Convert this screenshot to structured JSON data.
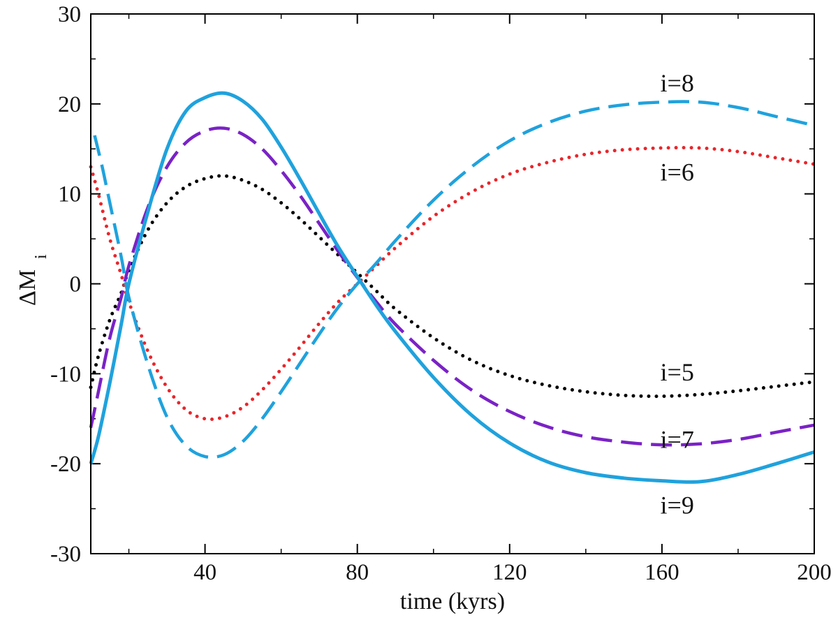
{
  "chart_data": {
    "type": "line",
    "title": "",
    "xlabel": "time (kyrs)",
    "ylabel_main": "ΔM",
    "ylabel_sub": "i",
    "xlim": [
      10,
      200
    ],
    "ylim": [
      -30,
      30
    ],
    "xticks": [
      40,
      80,
      120,
      160,
      200
    ],
    "xtick_labels": [
      "40",
      "80",
      "120",
      "160",
      "200"
    ],
    "yticks": [
      -30,
      -20,
      -10,
      0,
      10,
      20,
      30
    ],
    "ytick_labels": [
      "-30",
      "-20",
      "-10",
      "0",
      "10",
      "20",
      "30"
    ],
    "grid": false,
    "series": [
      {
        "name": "i=5",
        "label": "i=5",
        "color": "#000000",
        "style": "dotted",
        "label_at": [
          164,
          -9.8
        ],
        "points": [
          [
            10,
            -11.5
          ],
          [
            12,
            -8
          ],
          [
            15,
            -4
          ],
          [
            18,
            -1
          ],
          [
            20,
            1.5
          ],
          [
            25,
            6
          ],
          [
            30,
            9
          ],
          [
            35,
            10.8
          ],
          [
            40,
            11.7
          ],
          [
            45,
            12
          ],
          [
            50,
            11.5
          ],
          [
            55,
            10.5
          ],
          [
            60,
            9
          ],
          [
            65,
            7.2
          ],
          [
            70,
            5.2
          ],
          [
            75,
            3.2
          ],
          [
            80,
            1.2
          ],
          [
            85,
            -0.8
          ],
          [
            90,
            -2.8
          ],
          [
            100,
            -6
          ],
          [
            110,
            -8.5
          ],
          [
            120,
            -10.2
          ],
          [
            130,
            -11.3
          ],
          [
            140,
            -12
          ],
          [
            150,
            -12.4
          ],
          [
            160,
            -12.5
          ],
          [
            170,
            -12.3
          ],
          [
            180,
            -11.9
          ],
          [
            190,
            -11.4
          ],
          [
            200,
            -10.9
          ]
        ]
      },
      {
        "name": "i=6",
        "label": "i=6",
        "color": "#e8262b",
        "style": "dotted",
        "label_at": [
          164,
          12.4
        ],
        "points": [
          [
            10,
            13
          ],
          [
            12,
            10
          ],
          [
            15,
            5
          ],
          [
            18,
            1
          ],
          [
            20,
            -2
          ],
          [
            25,
            -7.5
          ],
          [
            30,
            -11.5
          ],
          [
            35,
            -14
          ],
          [
            40,
            -15
          ],
          [
            45,
            -14.8
          ],
          [
            50,
            -13.7
          ],
          [
            55,
            -11.8
          ],
          [
            60,
            -9.5
          ],
          [
            65,
            -7
          ],
          [
            70,
            -4.4
          ],
          [
            75,
            -2
          ],
          [
            80,
            0
          ],
          [
            85,
            2
          ],
          [
            90,
            4
          ],
          [
            100,
            7.5
          ],
          [
            110,
            10.2
          ],
          [
            120,
            12.2
          ],
          [
            130,
            13.5
          ],
          [
            140,
            14.4
          ],
          [
            150,
            14.9
          ],
          [
            160,
            15.1
          ],
          [
            170,
            15.1
          ],
          [
            180,
            14.7
          ],
          [
            190,
            14
          ],
          [
            200,
            13.3
          ]
        ]
      },
      {
        "name": "i=7",
        "label": "i=7",
        "color": "#7a22c6",
        "style": "dashed",
        "label_at": [
          164,
          -17.3
        ],
        "points": [
          [
            10,
            -16
          ],
          [
            12,
            -12
          ],
          [
            15,
            -6
          ],
          [
            18,
            -1.5
          ],
          [
            20,
            2
          ],
          [
            25,
            8.5
          ],
          [
            30,
            13
          ],
          [
            35,
            15.7
          ],
          [
            40,
            17
          ],
          [
            45,
            17.3
          ],
          [
            50,
            16.6
          ],
          [
            55,
            15
          ],
          [
            60,
            12.6
          ],
          [
            65,
            9.8
          ],
          [
            70,
            6.7
          ],
          [
            75,
            3.6
          ],
          [
            80,
            0.7
          ],
          [
            85,
            -2
          ],
          [
            90,
            -4.5
          ],
          [
            100,
            -8.5
          ],
          [
            110,
            -11.8
          ],
          [
            120,
            -14.2
          ],
          [
            130,
            -15.9
          ],
          [
            140,
            -17
          ],
          [
            150,
            -17.6
          ],
          [
            160,
            -17.9
          ],
          [
            170,
            -17.8
          ],
          [
            180,
            -17.3
          ],
          [
            190,
            -16.5
          ],
          [
            200,
            -15.7
          ]
        ]
      },
      {
        "name": "i=8",
        "label": "i=8",
        "color": "#1fa2dd",
        "style": "dashed",
        "label_at": [
          164,
          22.3
        ],
        "points": [
          [
            11,
            16.5
          ],
          [
            13,
            13
          ],
          [
            15,
            9
          ],
          [
            18,
            3
          ],
          [
            20,
            -1.5
          ],
          [
            25,
            -9
          ],
          [
            30,
            -14.8
          ],
          [
            35,
            -18
          ],
          [
            40,
            -19.2
          ],
          [
            45,
            -19
          ],
          [
            50,
            -17.5
          ],
          [
            55,
            -15
          ],
          [
            60,
            -12
          ],
          [
            65,
            -8.8
          ],
          [
            70,
            -5.6
          ],
          [
            75,
            -2.6
          ],
          [
            80,
            0
          ],
          [
            85,
            2.3
          ],
          [
            90,
            4.8
          ],
          [
            100,
            9.3
          ],
          [
            110,
            13
          ],
          [
            120,
            15.9
          ],
          [
            130,
            17.9
          ],
          [
            140,
            19.2
          ],
          [
            150,
            19.9
          ],
          [
            160,
            20.2
          ],
          [
            170,
            20.2
          ],
          [
            180,
            19.6
          ],
          [
            190,
            18.6
          ],
          [
            200,
            17.6
          ]
        ]
      },
      {
        "name": "i=9",
        "label": "i=9",
        "color": "#1fa2dd",
        "style": "solid",
        "label_at": [
          164,
          -24.6
        ],
        "points": [
          [
            10,
            -20
          ],
          [
            12,
            -17
          ],
          [
            15,
            -11
          ],
          [
            18,
            -4.5
          ],
          [
            20,
            0
          ],
          [
            25,
            8
          ],
          [
            30,
            15
          ],
          [
            35,
            19.2
          ],
          [
            40,
            20.7
          ],
          [
            45,
            21.2
          ],
          [
            50,
            20.3
          ],
          [
            55,
            18.3
          ],
          [
            60,
            15.2
          ],
          [
            65,
            11.6
          ],
          [
            70,
            7.8
          ],
          [
            75,
            4.1
          ],
          [
            80,
            0.8
          ],
          [
            85,
            -2.4
          ],
          [
            90,
            -5.3
          ],
          [
            100,
            -10.4
          ],
          [
            110,
            -14.6
          ],
          [
            120,
            -17.7
          ],
          [
            130,
            -19.8
          ],
          [
            140,
            -21
          ],
          [
            150,
            -21.6
          ],
          [
            160,
            -21.9
          ],
          [
            170,
            -22
          ],
          [
            180,
            -21.2
          ],
          [
            190,
            -20
          ],
          [
            200,
            -18.7
          ]
        ]
      }
    ]
  }
}
